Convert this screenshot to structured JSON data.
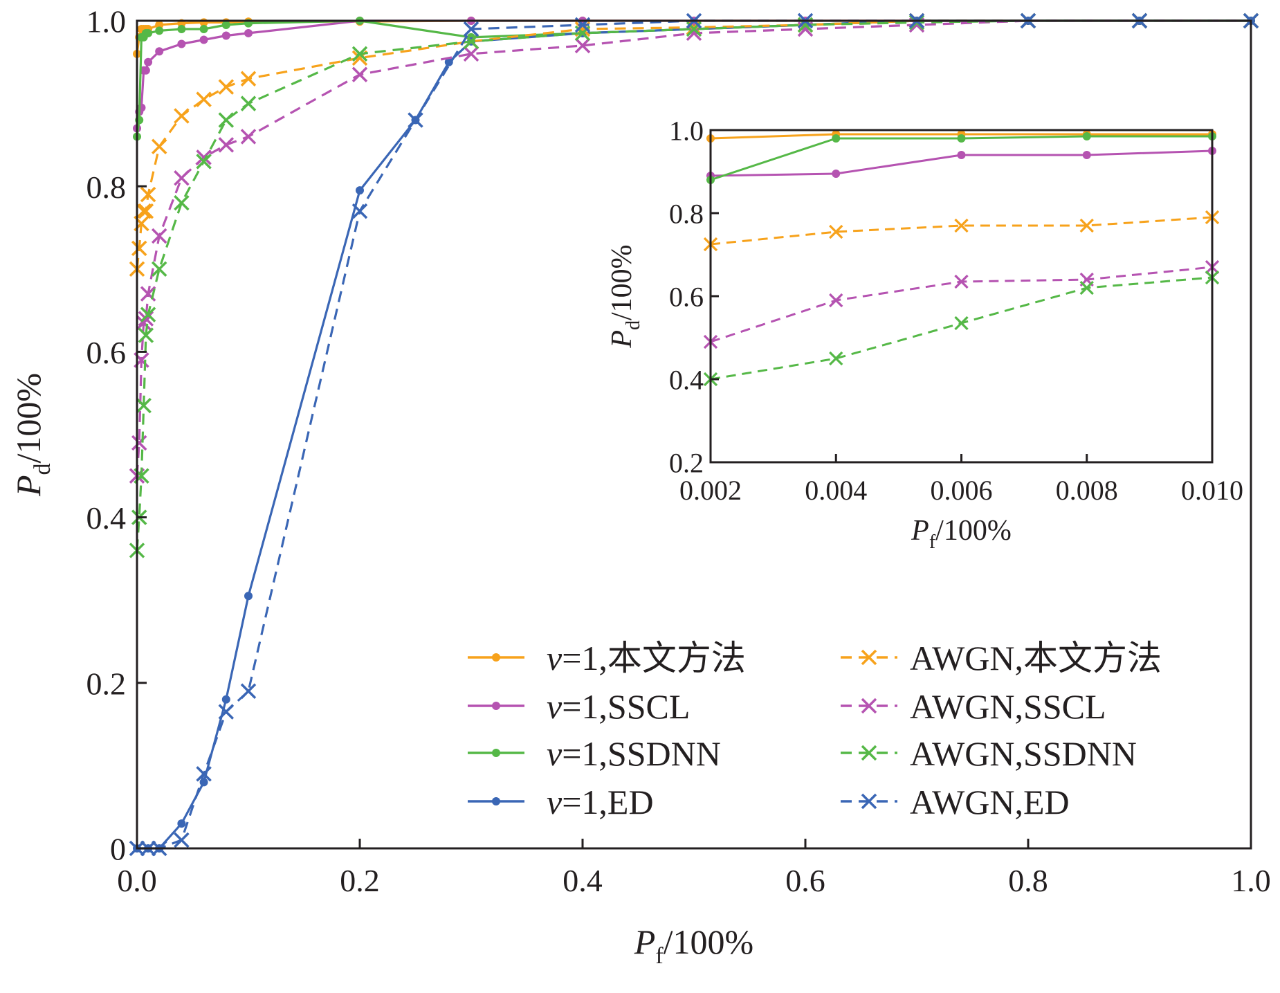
{
  "colors": {
    "orange": "#f7a21b",
    "purple": "#b553b1",
    "green": "#55b847",
    "blue": "#3a66b5",
    "axis": "#231f20"
  },
  "chart_data": [
    {
      "type": "line",
      "title": "",
      "xlabel": "P_f/100%",
      "ylabel": "P_d/100%",
      "xlabel_parts": {
        "base": "P",
        "sub": "f",
        "rest": "/100%"
      },
      "ylabel_parts": {
        "base": "P",
        "sub": "d",
        "rest": "/100%"
      },
      "xlim": [
        0,
        1
      ],
      "ylim": [
        0,
        1
      ],
      "xticks": [
        0,
        0.2,
        0.4,
        0.6,
        0.8,
        1.0
      ],
      "xtick_labels": [
        "0.0",
        "0.2",
        "0.4",
        "0.6",
        "0.8",
        "1.0"
      ],
      "yticks": [
        0,
        0.2,
        0.4,
        0.6,
        0.8,
        1.0
      ],
      "ytick_labels": [
        "0",
        "0.2",
        "0.4",
        "0.6",
        "0.8",
        "1.0"
      ],
      "grid": false,
      "legend_position": "lower-right",
      "series": [
        {
          "name": "v=1,本文方法",
          "legend_prefix": "v",
          "legend_rest": "=1,本文方法",
          "color": "orange",
          "dashed": false,
          "marker": "dot",
          "x": [
            0,
            0.002,
            0.004,
            0.006,
            0.008,
            0.01,
            0.02,
            0.04,
            0.06,
            0.08,
            0.1,
            0.2,
            0.3,
            0.4,
            0.5,
            0.6,
            0.7,
            0.8,
            0.9,
            1.0
          ],
          "y": [
            0.96,
            0.98,
            0.99,
            0.99,
            0.99,
            0.99,
            0.995,
            0.997,
            0.998,
            0.998,
            0.999,
            0.999,
            1.0,
            1.0,
            1.0,
            1.0,
            1.0,
            1.0,
            1.0,
            1.0
          ]
        },
        {
          "name": "v=1,SSCL",
          "legend_prefix": "v",
          "legend_rest": "=1,SSCL",
          "color": "purple",
          "dashed": false,
          "marker": "dot",
          "x": [
            0,
            0.002,
            0.004,
            0.006,
            0.008,
            0.01,
            0.02,
            0.04,
            0.06,
            0.08,
            0.1,
            0.2,
            0.3,
            0.4,
            0.5,
            0.6,
            0.7,
            0.8,
            0.9,
            1.0
          ],
          "y": [
            0.87,
            0.89,
            0.895,
            0.94,
            0.94,
            0.95,
            0.963,
            0.972,
            0.977,
            0.982,
            0.985,
            1.0,
            1.0,
            1.0,
            1.0,
            1.0,
            1.0,
            1.0,
            1.0,
            1.0
          ]
        },
        {
          "name": "v=1,SSDNN",
          "legend_prefix": "v",
          "legend_rest": "=1,SSDNN",
          "color": "green",
          "dashed": false,
          "marker": "dot",
          "x": [
            0,
            0.002,
            0.004,
            0.006,
            0.008,
            0.01,
            0.02,
            0.04,
            0.06,
            0.08,
            0.1,
            0.2,
            0.3,
            0.4,
            0.5,
            0.6,
            0.7,
            0.8,
            0.9,
            1.0
          ],
          "y": [
            0.86,
            0.88,
            0.98,
            0.98,
            0.985,
            0.985,
            0.988,
            0.99,
            0.99,
            0.995,
            0.997,
            1.0,
            0.98,
            0.985,
            0.99,
            0.995,
            1.0,
            1.0,
            1.0,
            1.0
          ]
        },
        {
          "name": "v=1,ED",
          "legend_prefix": "v",
          "legend_rest": "=1,ED",
          "color": "blue",
          "dashed": false,
          "marker": "dot",
          "x": [
            0,
            0.01,
            0.02,
            0.04,
            0.06,
            0.08,
            0.1,
            0.2,
            0.25,
            0.28,
            0.3,
            0.4,
            0.5,
            0.6,
            0.7,
            0.8,
            0.9,
            1.0
          ],
          "y": [
            0,
            0,
            0,
            0.03,
            0.08,
            0.18,
            0.305,
            0.795,
            0.88,
            0.95,
            0.975,
            0.985,
            0.99,
            0.995,
            1.0,
            1.0,
            1.0,
            1.0
          ]
        },
        {
          "name": "AWGN,本文方法",
          "legend_prefix": "",
          "legend_rest": "AWGN,本文方法",
          "color": "orange",
          "dashed": true,
          "marker": "x",
          "x": [
            0,
            0.002,
            0.004,
            0.006,
            0.008,
            0.01,
            0.02,
            0.04,
            0.06,
            0.08,
            0.1,
            0.2,
            0.3,
            0.4,
            0.5,
            0.6,
            0.7,
            0.8,
            0.9,
            1.0
          ],
          "y": [
            0.7,
            0.725,
            0.755,
            0.77,
            0.77,
            0.79,
            0.848,
            0.885,
            0.905,
            0.92,
            0.93,
            0.955,
            0.975,
            0.99,
            0.992,
            0.995,
            1.0,
            1.0,
            1.0,
            1.0
          ]
        },
        {
          "name": "AWGN,SSCL",
          "legend_prefix": "",
          "legend_rest": "AWGN,SSCL",
          "color": "purple",
          "dashed": true,
          "marker": "x",
          "x": [
            0,
            0.002,
            0.004,
            0.006,
            0.008,
            0.01,
            0.02,
            0.04,
            0.06,
            0.08,
            0.1,
            0.2,
            0.3,
            0.4,
            0.5,
            0.6,
            0.7,
            0.8,
            0.9,
            1.0
          ],
          "y": [
            0.45,
            0.49,
            0.59,
            0.635,
            0.64,
            0.67,
            0.74,
            0.81,
            0.835,
            0.85,
            0.86,
            0.935,
            0.96,
            0.97,
            0.985,
            0.99,
            0.995,
            1.0,
            1.0,
            1.0
          ]
        },
        {
          "name": "AWGN,SSDNN",
          "legend_prefix": "",
          "legend_rest": "AWGN,SSDNN",
          "color": "green",
          "dashed": true,
          "marker": "x",
          "x": [
            0,
            0.002,
            0.004,
            0.006,
            0.008,
            0.01,
            0.02,
            0.04,
            0.06,
            0.08,
            0.1,
            0.2,
            0.3,
            0.4,
            0.5,
            0.6,
            0.7,
            0.8,
            0.9,
            1.0
          ],
          "y": [
            0.36,
            0.4,
            0.45,
            0.535,
            0.62,
            0.645,
            0.7,
            0.78,
            0.83,
            0.88,
            0.9,
            0.96,
            0.975,
            0.985,
            0.99,
            0.995,
            0.998,
            1.0,
            1.0,
            1.0
          ]
        },
        {
          "name": "AWGN,ED",
          "legend_prefix": "",
          "legend_rest": "AWGN,ED",
          "color": "blue",
          "dashed": true,
          "marker": "x",
          "x": [
            0,
            0.01,
            0.02,
            0.04,
            0.06,
            0.08,
            0.1,
            0.2,
            0.25,
            0.3,
            0.4,
            0.5,
            0.6,
            0.7,
            0.8,
            0.9,
            1.0
          ],
          "y": [
            0,
            0,
            0,
            0.01,
            0.09,
            0.165,
            0.19,
            0.77,
            0.88,
            0.99,
            0.995,
            1.0,
            1.0,
            1.0,
            1.0,
            1.0,
            1.0
          ]
        }
      ]
    },
    {
      "type": "line",
      "title": "",
      "xlabel": "P_f/100%",
      "ylabel": "P_d/100%",
      "xlabel_parts": {
        "base": "P",
        "sub": "f",
        "rest": "/100%"
      },
      "ylabel_parts": {
        "base": "P",
        "sub": "d",
        "rest": "/100%"
      },
      "xlim": [
        0.002,
        0.01
      ],
      "ylim": [
        0.2,
        1.0
      ],
      "xticks": [
        0.002,
        0.004,
        0.006,
        0.008,
        0.01
      ],
      "xtick_labels": [
        "0.002",
        "0.004",
        "0.006",
        "0.008",
        "0.010"
      ],
      "yticks": [
        0.2,
        0.4,
        0.6,
        0.8,
        1.0
      ],
      "ytick_labels": [
        "0.2",
        "0.4",
        "0.6",
        "0.8",
        "1.0"
      ],
      "grid": false,
      "series": [
        {
          "name": "v=1,本文方法",
          "color": "orange",
          "dashed": false,
          "marker": "dot",
          "x": [
            0.002,
            0.004,
            0.006,
            0.008,
            0.01
          ],
          "y": [
            0.98,
            0.99,
            0.99,
            0.99,
            0.99
          ]
        },
        {
          "name": "v=1,SSCL",
          "color": "purple",
          "dashed": false,
          "marker": "dot",
          "x": [
            0.002,
            0.004,
            0.006,
            0.008,
            0.01
          ],
          "y": [
            0.89,
            0.895,
            0.94,
            0.94,
            0.95
          ]
        },
        {
          "name": "v=1,SSDNN",
          "color": "green",
          "dashed": false,
          "marker": "dot",
          "x": [
            0.002,
            0.004,
            0.006,
            0.008,
            0.01
          ],
          "y": [
            0.88,
            0.98,
            0.98,
            0.985,
            0.985
          ]
        },
        {
          "name": "AWGN,本文方法",
          "color": "orange",
          "dashed": true,
          "marker": "x",
          "x": [
            0.002,
            0.004,
            0.006,
            0.008,
            0.01
          ],
          "y": [
            0.725,
            0.755,
            0.77,
            0.77,
            0.79
          ]
        },
        {
          "name": "AWGN,SSCL",
          "color": "purple",
          "dashed": true,
          "marker": "x",
          "x": [
            0.002,
            0.004,
            0.006,
            0.008,
            0.01
          ],
          "y": [
            0.49,
            0.59,
            0.635,
            0.64,
            0.67
          ]
        },
        {
          "name": "AWGN,SSDNN",
          "color": "green",
          "dashed": true,
          "marker": "x",
          "x": [
            0.002,
            0.004,
            0.006,
            0.008,
            0.01
          ],
          "y": [
            0.4,
            0.45,
            0.535,
            0.62,
            0.645
          ]
        }
      ]
    }
  ]
}
